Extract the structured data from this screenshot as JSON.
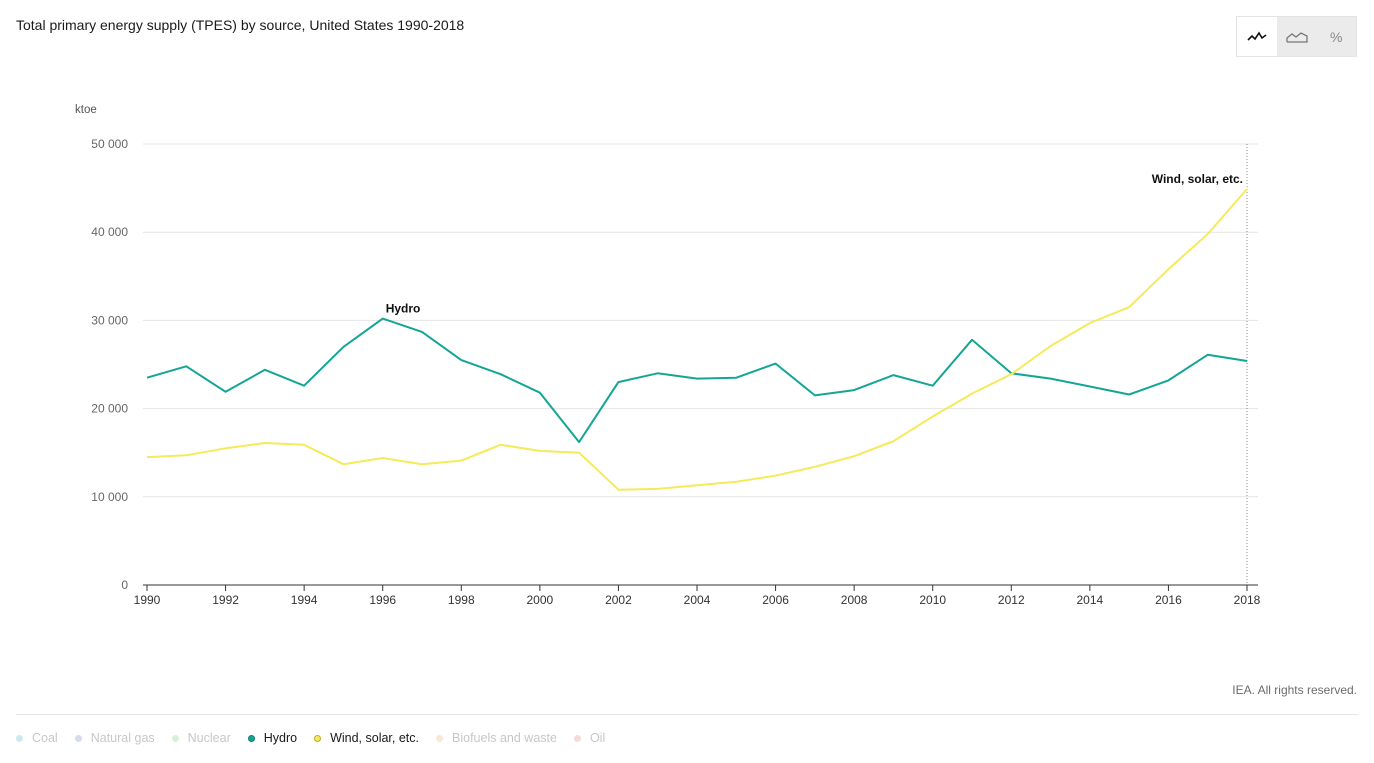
{
  "title": "Total primary energy supply (TPES) by source, United States 1990-2018",
  "toolbar": {
    "buttons": [
      {
        "icon": "line-chart-icon",
        "active": true
      },
      {
        "icon": "area-chart-icon",
        "active": false
      },
      {
        "icon": "percent-icon",
        "label": "%",
        "active": false
      }
    ]
  },
  "copyright": "IEA. All rights reserved.",
  "legend": [
    {
      "label": "Coal",
      "color": "#9fd9e4",
      "active": false
    },
    {
      "label": "Natural gas",
      "color": "#b7bde0",
      "active": false
    },
    {
      "label": "Nuclear",
      "color": "#b3e6c0",
      "active": false
    },
    {
      "label": "Hydro",
      "color": "#14a595",
      "active": true
    },
    {
      "label": "Wind, solar, etc.",
      "color": "#f5ea5a",
      "active": true
    },
    {
      "label": "Biofuels and waste",
      "color": "#f6d2b3",
      "active": false
    },
    {
      "label": "Oil",
      "color": "#f3b9b9",
      "active": false
    }
  ],
  "chart_data": {
    "type": "line",
    "ylabel": "ktoe",
    "ylim": [
      0,
      50000
    ],
    "yticks": [
      0,
      10000,
      20000,
      30000,
      40000,
      50000
    ],
    "ytick_labels": [
      "0",
      "10 000",
      "20 000",
      "30 000",
      "40 000",
      "50 000"
    ],
    "xticks": [
      1990,
      1992,
      1994,
      1996,
      1998,
      2000,
      2002,
      2004,
      2006,
      2008,
      2010,
      2012,
      2014,
      2016,
      2018
    ],
    "x": [
      1990,
      1991,
      1992,
      1993,
      1994,
      1995,
      1996,
      1997,
      1998,
      1999,
      2000,
      2001,
      2002,
      2003,
      2004,
      2005,
      2006,
      2007,
      2008,
      2009,
      2010,
      2011,
      2012,
      2013,
      2014,
      2015,
      2016,
      2017,
      2018
    ],
    "grid": true,
    "series": [
      {
        "name": "Hydro",
        "color": "#14a595",
        "label_year": 1996,
        "values": [
          23500,
          24800,
          21900,
          24400,
          22600,
          27000,
          30200,
          28700,
          25500,
          23900,
          21800,
          16200,
          23000,
          24000,
          23400,
          23500,
          25100,
          21500,
          22100,
          23800,
          22600,
          27800,
          24000,
          23400,
          22500,
          21600,
          23200,
          26100,
          25400
        ]
      },
      {
        "name": "Wind, solar, etc.",
        "color": "#f5ea5a",
        "label_year": 2018,
        "values": [
          14500,
          14700,
          15500,
          16100,
          15900,
          13700,
          14400,
          13700,
          14100,
          15900,
          15200,
          15000,
          10800,
          10900,
          11300,
          11700,
          12400,
          13400,
          14600,
          16300,
          19100,
          21700,
          23900,
          27100,
          29700,
          31500,
          35800,
          39800,
          44900
        ]
      }
    ]
  }
}
